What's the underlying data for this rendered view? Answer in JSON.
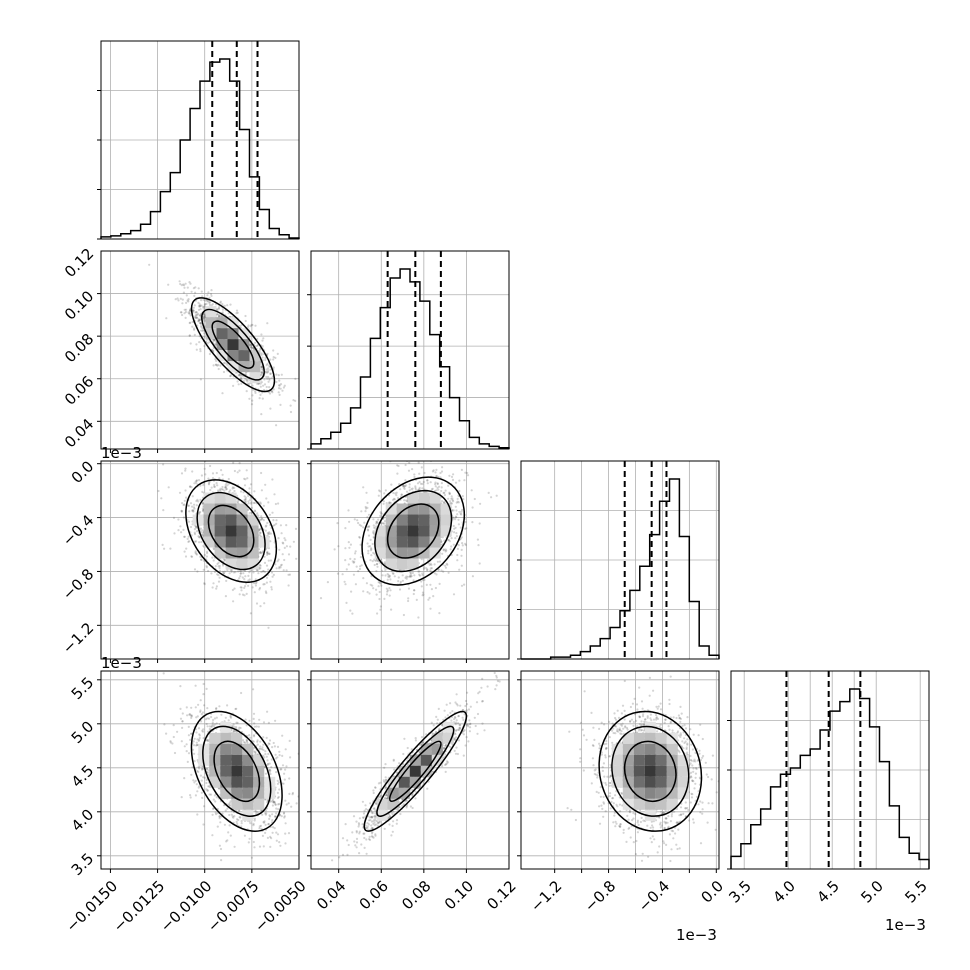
{
  "chart_data": {
    "type": "corner",
    "title": "",
    "grid": true,
    "parameters": [
      {
        "index": 0,
        "range": [
          -0.0155,
          -0.005
        ],
        "ticks": [
          -0.015,
          -0.0125,
          -0.01,
          -0.0075,
          -0.005
        ],
        "tick_labels": [
          "−0.0150",
          "−0.0125",
          "−0.0100",
          "−0.0075",
          "−0.0050"
        ],
        "offset_text": ""
      },
      {
        "index": 1,
        "range": [
          0.027,
          0.12
        ],
        "ticks": [
          0.04,
          0.06,
          0.08,
          0.1,
          0.12
        ],
        "tick_labels": [
          "0.04",
          "0.06",
          "0.08",
          "0.10",
          "0.12"
        ],
        "offset_text": ""
      },
      {
        "index": 2,
        "range": [
          -1.45,
          0.02
        ],
        "ticks": [
          -1.2,
          -0.8,
          -0.4,
          0.0
        ],
        "tick_labels": [
          "−1.2",
          "−0.8",
          "−0.4",
          "0.0"
        ],
        "offset_text": "1e−3"
      },
      {
        "index": 3,
        "range": [
          3.35,
          5.6
        ],
        "ticks": [
          3.5,
          4.0,
          4.5,
          5.0,
          5.5
        ],
        "tick_labels": [
          "3.5",
          "4.0",
          "4.5",
          "5.0",
          "5.5"
        ],
        "offset_text": "1e−3"
      }
    ],
    "extra_x_ticks": {
      "2": {
        "ticks": [
          -1.0,
          -0.6,
          -0.2
        ],
        "comment": "minor gridlines only"
      },
      "3": {
        "ticks": [
          4.25,
          4.75
        ],
        "comment": "minor gridlines only"
      }
    },
    "histograms": [
      {
        "param": 0,
        "edges_start": -0.0155,
        "edges_end": -0.005,
        "counts": [
          2,
          3,
          5,
          8,
          14,
          26,
          45,
          63,
          94,
          124,
          150,
          168,
          171,
          150,
          104,
          59,
          28,
          10,
          4,
          1
        ],
        "quantiles": [
          -0.0096,
          -0.0083,
          -0.0072
        ]
      },
      {
        "param": 1,
        "edges_start": 0.027,
        "edges_end": 0.12,
        "counts": [
          4,
          8,
          13,
          20,
          32,
          56,
          86,
          110,
          133,
          140,
          130,
          115,
          89,
          64,
          40,
          22,
          9,
          4,
          2,
          1
        ],
        "quantiles": [
          0.063,
          0.076,
          0.088
        ],
        "y_ticks": [
          40,
          80,
          120
        ]
      },
      {
        "param": 2,
        "edges_start": -1.45,
        "edges_end": 0.02,
        "counts": [
          0,
          0,
          0,
          1,
          1,
          2,
          4,
          7,
          11,
          17,
          26,
          37,
          50,
          67,
          85,
          97,
          66,
          31,
          7,
          2
        ],
        "quantiles": [
          -0.68,
          -0.48,
          -0.37
        ]
      },
      {
        "param": 3,
        "edges_start": 3.35,
        "edges_end": 5.6,
        "counts": [
          4,
          8,
          14,
          19,
          26,
          30,
          32,
          36,
          38,
          44,
          50,
          53,
          57,
          54,
          45,
          34,
          20,
          10,
          5,
          3
        ],
        "quantiles": [
          3.98,
          4.46,
          4.82
        ]
      }
    ],
    "pairs": [
      {
        "x": 0,
        "y": 1,
        "mean": [
          -0.0085,
          0.076
        ],
        "sd": [
          0.0011,
          0.011
        ],
        "rho": -0.77
      },
      {
        "x": 0,
        "y": 2,
        "mean": [
          -0.0086,
          -0.5
        ],
        "sd": [
          0.0012,
          0.19
        ],
        "rho": -0.35
      },
      {
        "x": 1,
        "y": 2,
        "mean": [
          0.075,
          -0.5
        ],
        "sd": [
          0.012,
          0.2
        ],
        "rho": 0.3
      },
      {
        "x": 0,
        "y": 3,
        "mean": [
          -0.0083,
          4.46
        ],
        "sd": [
          0.0012,
          0.34
        ],
        "rho": -0.4
      },
      {
        "x": 1,
        "y": 3,
        "mean": [
          0.076,
          4.46
        ],
        "sd": [
          0.012,
          0.34
        ],
        "rho": 0.92
      },
      {
        "x": 2,
        "y": 3,
        "mean": [
          -0.49,
          4.46
        ],
        "sd": [
          0.19,
          0.34
        ],
        "rho": -0.1
      }
    ],
    "contour_levels_sigma": [
      1,
      1.5,
      2
    ]
  }
}
